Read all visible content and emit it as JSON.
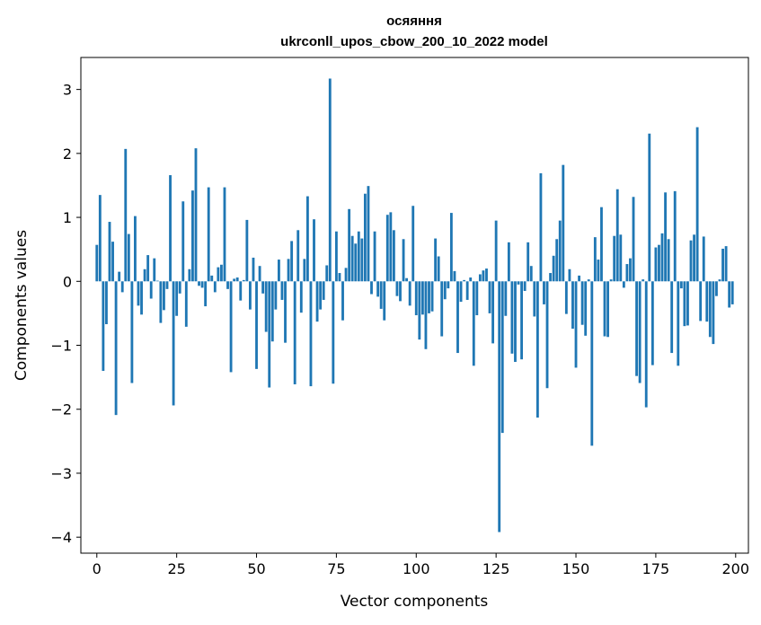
{
  "chart_data": {
    "type": "bar",
    "title": "осяяння",
    "subtitle": "ukrconll_upos_cbow_200_10_2022 model",
    "xlabel": "Vector components",
    "ylabel": "Components values",
    "xlim": [
      -5,
      204
    ],
    "ylim": [
      -4.25,
      3.5
    ],
    "xticks": [
      0,
      25,
      50,
      75,
      100,
      125,
      150,
      175,
      200
    ],
    "yticks": [
      -4,
      -3,
      -2,
      -1,
      0,
      1,
      2,
      3
    ],
    "ytick_labels": [
      "−4",
      "−3",
      "−2",
      "−1",
      "0",
      "1",
      "2",
      "3"
    ],
    "grid": false,
    "legend": "none",
    "bar_color": "#1f77b4",
    "values": [
      0.57,
      1.35,
      -1.4,
      -0.67,
      0.93,
      0.62,
      -2.09,
      0.15,
      -0.17,
      2.07,
      0.74,
      -1.59,
      1.02,
      -0.38,
      -0.52,
      0.19,
      0.41,
      -0.27,
      0.36,
      0.01,
      -0.65,
      -0.45,
      -0.12,
      1.66,
      -1.94,
      -0.54,
      -0.19,
      1.25,
      -0.71,
      0.19,
      1.42,
      2.08,
      -0.07,
      -0.1,
      -0.39,
      1.47,
      0.09,
      -0.17,
      0.22,
      0.26,
      1.47,
      -0.12,
      -1.42,
      0.04,
      0.06,
      -0.3,
      0.02,
      0.96,
      -0.44,
      0.37,
      -1.37,
      0.24,
      -0.19,
      -0.79,
      -1.66,
      -0.94,
      -0.44,
      0.34,
      -0.29,
      -0.96,
      0.35,
      0.63,
      -1.61,
      0.8,
      -0.49,
      0.35,
      1.33,
      -1.64,
      0.97,
      -0.63,
      -0.44,
      -0.29,
      0.25,
      3.17,
      -1.6,
      0.78,
      0.13,
      -0.61,
      0.21,
      1.13,
      0.71,
      0.59,
      0.78,
      0.67,
      1.37,
      1.49,
      -0.2,
      0.78,
      -0.24,
      -0.43,
      -0.61,
      1.04,
      1.08,
      0.8,
      -0.23,
      -0.31,
      0.66,
      0.05,
      -0.38,
      1.18,
      -0.53,
      -0.91,
      -0.52,
      -1.06,
      -0.5,
      -0.47,
      0.67,
      0.39,
      -0.86,
      -0.28,
      -0.11,
      1.07,
      0.16,
      -1.12,
      -0.32,
      0.02,
      -0.29,
      0.06,
      -1.32,
      -0.53,
      0.11,
      0.17,
      0.2,
      -0.5,
      -0.97,
      0.95,
      -3.92,
      -2.37,
      -0.54,
      0.61,
      -1.13,
      -1.26,
      -0.05,
      -1.22,
      -0.15,
      0.61,
      0.24,
      -0.55,
      -2.13,
      1.69,
      -0.36,
      -1.67,
      0.13,
      0.4,
      0.66,
      0.95,
      1.82,
      -0.51,
      0.19,
      -0.74,
      -1.35,
      0.09,
      -0.68,
      -0.85,
      0.03,
      -2.57,
      0.69,
      0.34,
      1.16,
      -0.86,
      -0.87,
      0.03,
      0.71,
      1.44,
      0.73,
      -0.1,
      0.27,
      0.36,
      1.32,
      -1.48,
      -1.59,
      0.03,
      -1.97,
      2.31,
      -1.31,
      0.53,
      0.57,
      0.75,
      1.39,
      0.66,
      -1.12,
      1.41,
      -1.32,
      -0.11,
      -0.7,
      -0.69,
      0.64,
      0.73,
      2.41,
      -0.62,
      0.7,
      -0.63,
      -0.87,
      -0.98,
      -0.23,
      0.03,
      0.51,
      0.55,
      -0.41,
      -0.36
    ]
  }
}
